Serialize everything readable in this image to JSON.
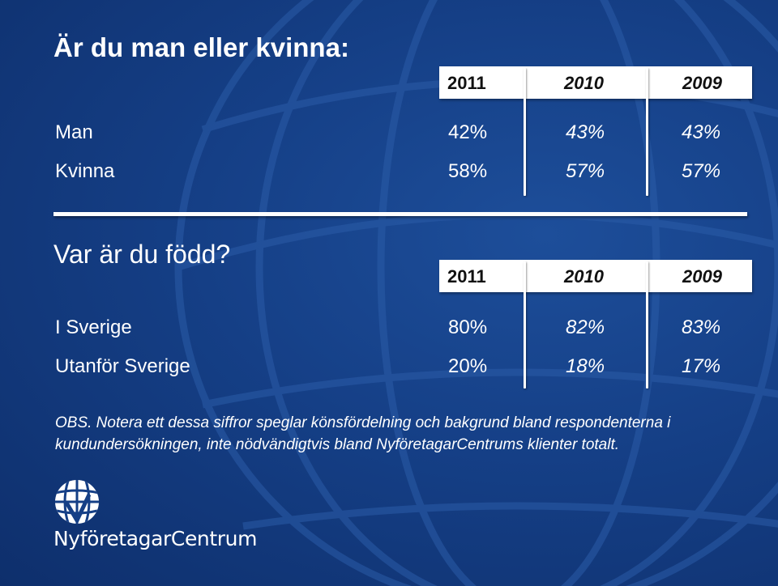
{
  "section1": {
    "title": "Är du man eller kvinna:",
    "years": [
      "2011",
      "2010",
      "2009"
    ],
    "rows": [
      {
        "label": "Man",
        "values": [
          "42%",
          "43%",
          "43%"
        ]
      },
      {
        "label": "Kvinna",
        "values": [
          "58%",
          "57%",
          "57%"
        ]
      }
    ]
  },
  "section2": {
    "title": "Var är du född?",
    "years": [
      "2011",
      "2010",
      "2009"
    ],
    "rows": [
      {
        "label": "I Sverige",
        "values": [
          "80%",
          "82%",
          "83%"
        ]
      },
      {
        "label": "Utanför Sverige",
        "values": [
          "20%",
          "18%",
          "17%"
        ]
      }
    ]
  },
  "note": {
    "line1": "OBS. Notera ett dessa siffror speglar könsfördelning och bakgrund bland respondenterna i",
    "line2": "kundundersökningen, inte nödvändigtvis bland NyföretagarCentrums klienter totalt."
  },
  "logo": {
    "text": "NyföretagarCentrum"
  },
  "colors": {
    "background": "#153f86",
    "text": "#ffffff",
    "header_text": "#111111"
  }
}
